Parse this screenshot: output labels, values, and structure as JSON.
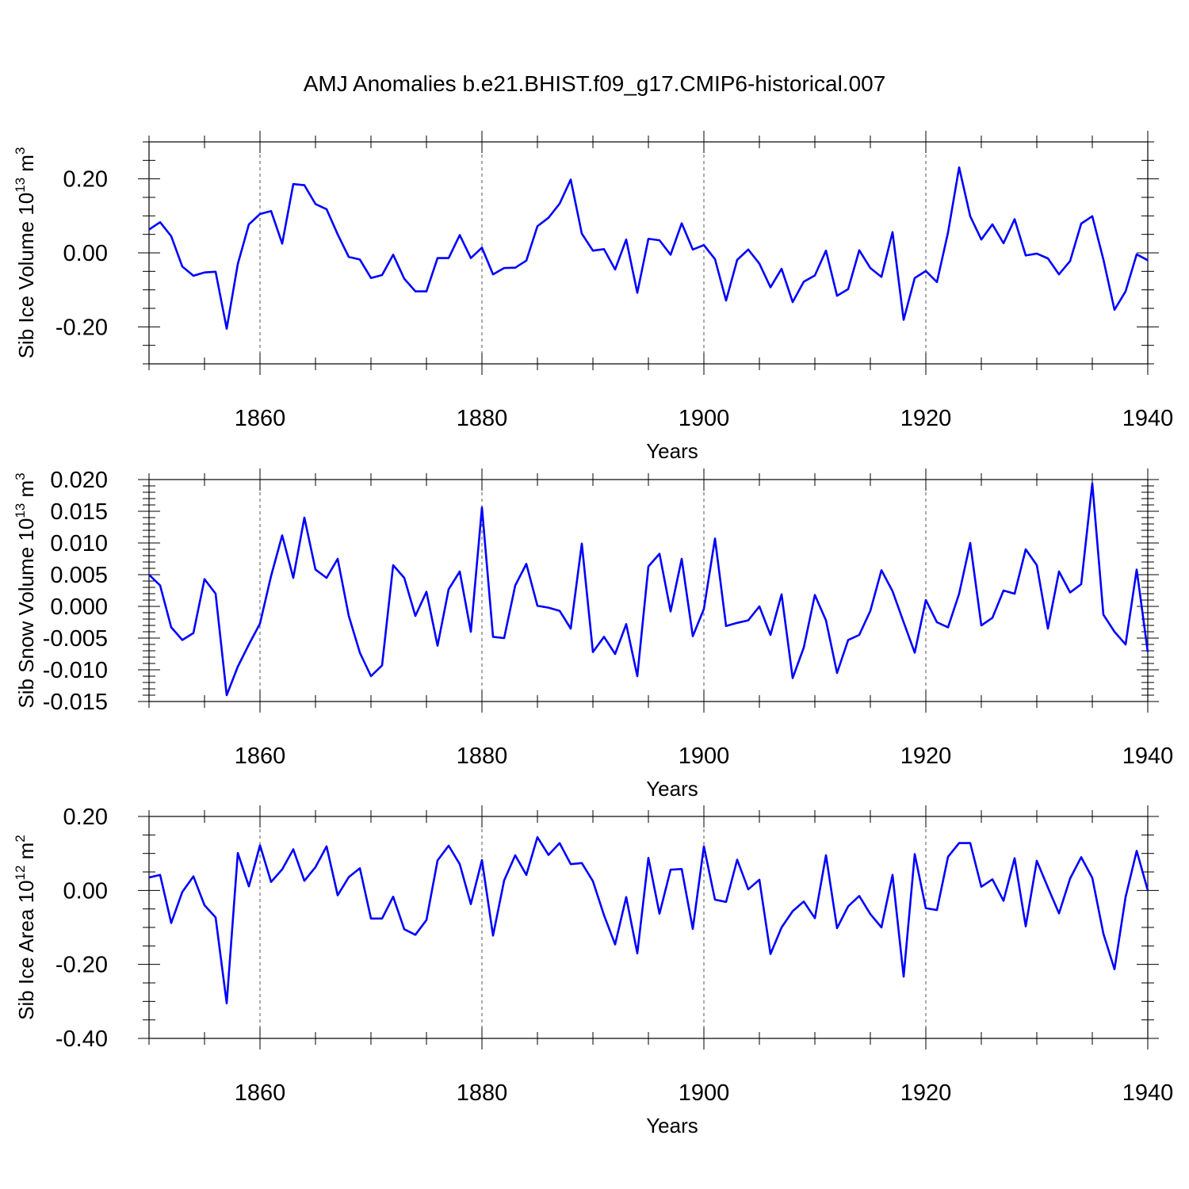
{
  "title": "AMJ Anomalies b.e21.BHIST.f09_g17.CMIP6-historical.007",
  "line_color": "#0000ff",
  "chart_data": [
    {
      "type": "line",
      "id": "ice-volume",
      "ylabel": "Sib Ice Volume 10",
      "ylabel_exp": "13",
      "ylabel_unit": " m",
      "ylabel_unit_exp": "3",
      "xlabel": "Years",
      "xlim": [
        1850,
        1940
      ],
      "ylim": [
        -0.3,
        0.3
      ],
      "yticks": [
        -0.2,
        0.0,
        0.2
      ],
      "ytick_labels": [
        "-0.20",
        "0.00",
        "0.20"
      ],
      "y_minor_step": 0.05,
      "xticks": [
        1860,
        1880,
        1900,
        1920,
        1940
      ],
      "xtick_labels": [
        "1860",
        "1880",
        "1900",
        "1920",
        "1940"
      ],
      "x_minor_step": 5,
      "grid_x": [
        1860,
        1880,
        1900,
        1920
      ],
      "x_start": 1850,
      "values": [
        0.063,
        0.083,
        0.045,
        -0.037,
        -0.062,
        -0.053,
        -0.051,
        -0.205,
        -0.03,
        0.077,
        0.105,
        0.113,
        0.025,
        0.186,
        0.183,
        0.132,
        0.118,
        0.05,
        -0.011,
        -0.018,
        -0.068,
        -0.06,
        -0.005,
        -0.07,
        -0.104,
        -0.104,
        -0.014,
        -0.014,
        0.048,
        -0.014,
        0.014,
        -0.058,
        -0.041,
        -0.04,
        -0.021,
        0.072,
        0.095,
        0.133,
        0.198,
        0.052,
        0.006,
        0.01,
        -0.045,
        0.036,
        -0.108,
        0.038,
        0.034,
        -0.005,
        0.08,
        0.009,
        0.021,
        -0.017,
        -0.129,
        -0.019,
        0.009,
        -0.029,
        -0.093,
        -0.043,
        -0.133,
        -0.078,
        -0.061,
        0.006,
        -0.116,
        -0.098,
        0.007,
        -0.041,
        -0.065,
        0.056,
        -0.181,
        -0.068,
        -0.049,
        -0.079,
        0.055,
        0.231,
        0.099,
        0.036,
        0.077,
        0.026,
        0.091,
        -0.007,
        -0.002,
        -0.015,
        -0.058,
        -0.022,
        0.079,
        0.099,
        -0.018,
        -0.154,
        -0.104,
        -0.004,
        -0.02
      ]
    },
    {
      "type": "line",
      "id": "snow-volume",
      "ylabel": "Sib Snow Volume 10",
      "ylabel_exp": "13",
      "ylabel_unit": " m",
      "ylabel_unit_exp": "3",
      "xlabel": "Years",
      "xlim": [
        1850,
        1940
      ],
      "ylim": [
        -0.015,
        0.02
      ],
      "yticks": [
        -0.015,
        -0.01,
        -0.005,
        0.0,
        0.005,
        0.01,
        0.015,
        0.02
      ],
      "ytick_labels": [
        "-0.015",
        "-0.010",
        "-0.005",
        "0.000",
        "0.005",
        "0.010",
        "0.015",
        "0.020"
      ],
      "y_minor_step": 0.001,
      "xticks": [
        1860,
        1880,
        1900,
        1920,
        1940
      ],
      "xtick_labels": [
        "1860",
        "1880",
        "1900",
        "1920",
        "1940"
      ],
      "x_minor_step": 5,
      "grid_x": [
        1860,
        1880,
        1900,
        1920
      ],
      "x_start": 1850,
      "values": [
        0.005,
        0.0033,
        -0.0033,
        -0.0053,
        -0.0042,
        0.0043,
        0.002,
        -0.014,
        -0.0095,
        -0.006,
        -0.0027,
        0.0048,
        0.0112,
        0.0045,
        0.014,
        0.0058,
        0.0045,
        0.0075,
        -0.0015,
        -0.0073,
        -0.011,
        -0.0093,
        0.0065,
        0.0045,
        -0.0015,
        0.0023,
        -0.0062,
        0.0027,
        0.0055,
        -0.004,
        0.0156,
        -0.0048,
        -0.005,
        0.0033,
        0.0067,
        0.0001,
        -0.0002,
        -0.0007,
        -0.0035,
        0.0099,
        -0.0072,
        -0.0048,
        -0.0075,
        -0.0028,
        -0.011,
        0.0063,
        0.0083,
        -0.0008,
        0.0075,
        -0.0047,
        -0.0004,
        0.0107,
        -0.0031,
        -0.0026,
        -0.0022,
        0.0,
        -0.0045,
        0.0019,
        -0.0113,
        -0.0065,
        0.0018,
        -0.0022,
        -0.0105,
        -0.0053,
        -0.0045,
        -0.0007,
        0.0057,
        0.0024,
        -0.0025,
        -0.0073,
        0.001,
        -0.0025,
        -0.0033,
        0.002,
        0.01,
        -0.003,
        -0.0018,
        0.0025,
        0.002,
        0.009,
        0.0065,
        -0.0035,
        0.0055,
        0.0022,
        0.0035,
        0.0194,
        -0.0013,
        -0.004,
        -0.006,
        0.0058,
        -0.0072
      ]
    },
    {
      "type": "line",
      "id": "ice-area",
      "ylabel": "Sib Ice Area 10",
      "ylabel_exp": "12",
      "ylabel_unit": " m",
      "ylabel_unit_exp": "2",
      "xlabel": "Years",
      "xlim": [
        1850,
        1940
      ],
      "ylim": [
        -0.4,
        0.2
      ],
      "yticks": [
        -0.4,
        -0.2,
        0.0,
        0.2
      ],
      "ytick_labels": [
        "-0.40",
        "-0.20",
        "0.00",
        "0.20"
      ],
      "y_minor_step": 0.05,
      "xticks": [
        1860,
        1880,
        1900,
        1920,
        1940
      ],
      "xtick_labels": [
        "1860",
        "1880",
        "1900",
        "1920",
        "1940"
      ],
      "x_minor_step": 5,
      "grid_x": [
        1860,
        1880,
        1900,
        1920
      ],
      "x_start": 1850,
      "values": [
        0.035,
        0.042,
        -0.088,
        -0.004,
        0.038,
        -0.04,
        -0.073,
        -0.305,
        0.101,
        0.011,
        0.122,
        0.023,
        0.057,
        0.111,
        0.026,
        0.063,
        0.119,
        -0.013,
        0.036,
        0.06,
        -0.076,
        -0.076,
        -0.017,
        -0.105,
        -0.12,
        -0.08,
        0.081,
        0.121,
        0.071,
        -0.037,
        0.082,
        -0.122,
        0.027,
        0.095,
        0.042,
        0.144,
        0.096,
        0.128,
        0.071,
        0.074,
        0.025,
        -0.067,
        -0.146,
        -0.018,
        -0.17,
        0.088,
        -0.063,
        0.056,
        0.058,
        -0.104,
        0.119,
        -0.025,
        -0.031,
        0.083,
        0.003,
        0.029,
        -0.172,
        -0.1,
        -0.056,
        -0.03,
        -0.075,
        0.095,
        -0.102,
        -0.043,
        -0.015,
        -0.064,
        -0.1,
        0.042,
        -0.233,
        0.098,
        -0.048,
        -0.053,
        0.091,
        0.128,
        0.128,
        0.01,
        0.03,
        -0.028,
        0.087,
        -0.097,
        0.08,
        0.008,
        -0.062,
        0.032,
        0.09,
        0.034,
        -0.117,
        -0.213,
        -0.018,
        0.107,
        0.0
      ]
    }
  ]
}
